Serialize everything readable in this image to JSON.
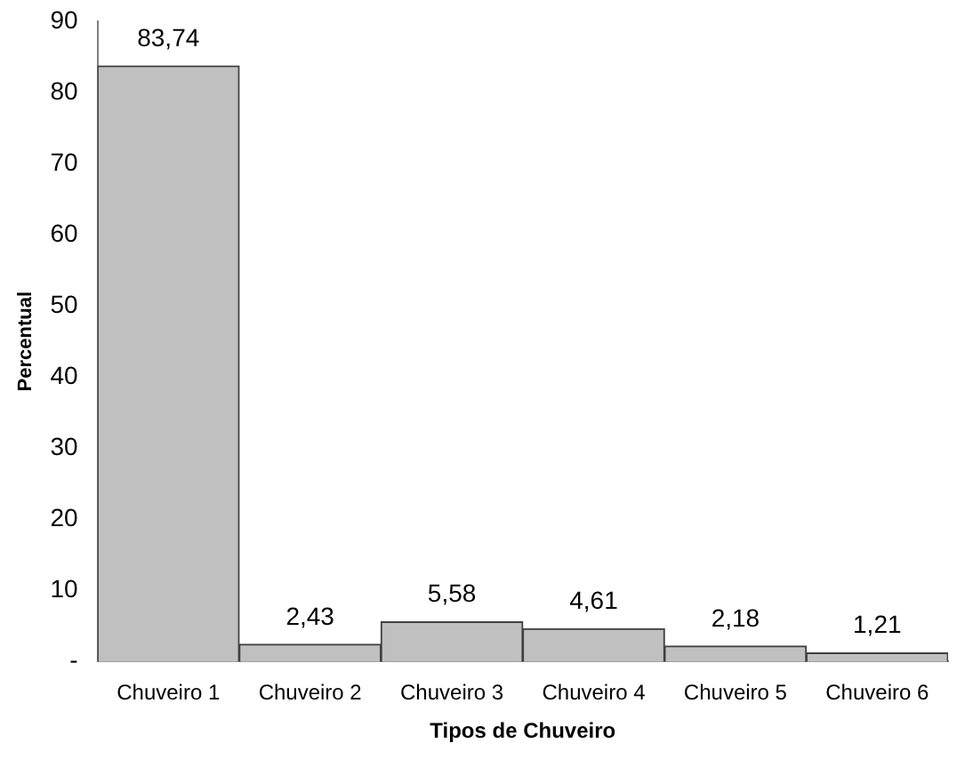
{
  "chart_data": {
    "type": "bar",
    "xlabel": "Tipos de Chuveiro",
    "ylabel": "Percentual",
    "categories": [
      "Chuveiro 1",
      "Chuveiro 2",
      "Chuveiro 3",
      "Chuveiro 4",
      "Chuveiro 5",
      "Chuveiro 6"
    ],
    "values": [
      83.74,
      2.43,
      5.58,
      4.61,
      2.18,
      1.21
    ],
    "value_labels": [
      "83,74",
      "2,43",
      "5,58",
      "4,61",
      "2,18",
      "1,21"
    ],
    "color": "#c0c0c0",
    "ylim": [
      0,
      90
    ],
    "yticks": [
      {
        "value": 0,
        "label": "-"
      },
      10,
      20,
      30,
      40,
      50,
      60,
      70,
      80,
      90
    ],
    "grid": false,
    "legend": false
  }
}
